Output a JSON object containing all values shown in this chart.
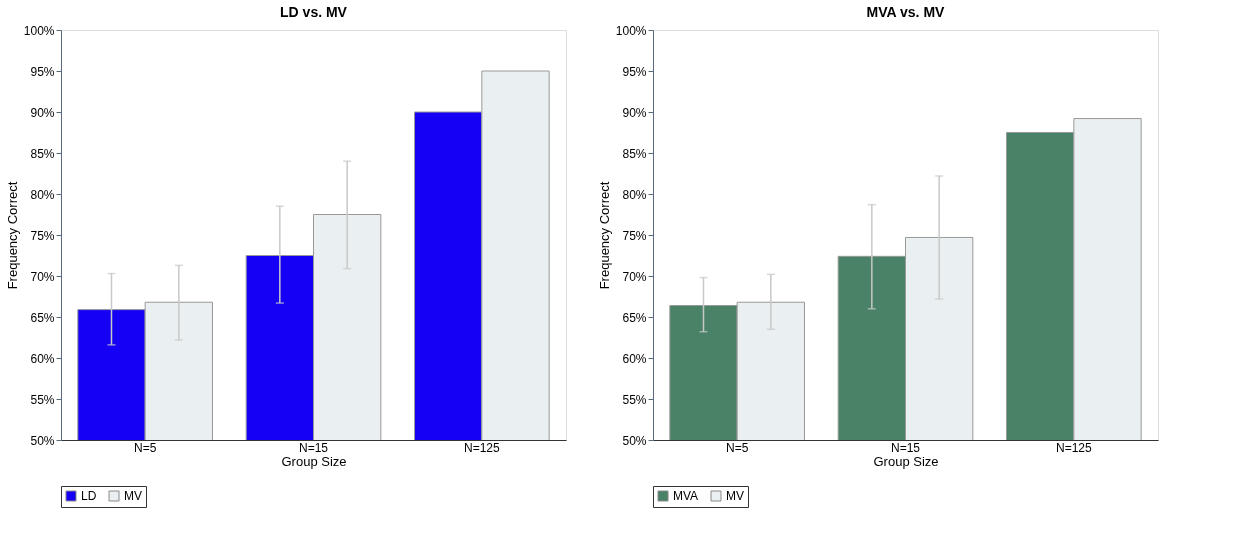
{
  "chart_data": [
    {
      "type": "bar",
      "title": "LD vs. MV",
      "xlabel": "Group Size",
      "ylabel": "Frequency Correct",
      "categories": [
        "N=5",
        "N=15",
        "N=125"
      ],
      "series": [
        {
          "name": "LD",
          "color": "#1500f5",
          "values": [
            65.9,
            72.5,
            90.0
          ],
          "errors": [
            [
              61.6,
              70.3
            ],
            [
              66.7,
              78.5
            ],
            null
          ]
        },
        {
          "name": "MV",
          "color": "#eaeff1",
          "values": [
            66.8,
            77.5,
            95.0
          ],
          "errors": [
            [
              62.2,
              71.3
            ],
            [
              70.9,
              84.0
            ],
            null
          ]
        }
      ],
      "ylim": [
        50,
        100
      ],
      "yticks": [
        {
          "value": 50,
          "label": "50%"
        },
        {
          "value": 55,
          "label": "55%"
        },
        {
          "value": 60,
          "label": "60%"
        },
        {
          "value": 65,
          "label": "65%"
        },
        {
          "value": 70,
          "label": "70%"
        },
        {
          "value": 75,
          "label": "75%"
        },
        {
          "value": 80,
          "label": "80%"
        },
        {
          "value": 85,
          "label": "85%"
        },
        {
          "value": 90,
          "label": "90%"
        },
        {
          "value": 95,
          "label": "95%"
        },
        {
          "value": 100,
          "label": "100%"
        }
      ],
      "grid": false,
      "legend": "bottom"
    },
    {
      "type": "bar",
      "title": "MVA vs. MV",
      "xlabel": "Group Size",
      "ylabel": "Frequency Correct",
      "categories": [
        "N=5",
        "N=15",
        "N=125"
      ],
      "series": [
        {
          "name": "MVA",
          "color": "#4a8267",
          "values": [
            66.4,
            72.4,
            87.5
          ],
          "errors": [
            [
              63.2,
              69.8
            ],
            [
              66.0,
              78.7
            ],
            null
          ]
        },
        {
          "name": "MV",
          "color": "#eaeff1",
          "values": [
            66.8,
            74.7,
            89.2
          ],
          "errors": [
            [
              63.5,
              70.2
            ],
            [
              67.2,
              82.2
            ],
            null
          ]
        }
      ],
      "ylim": [
        50,
        100
      ],
      "yticks": [
        {
          "value": 50,
          "label": "50%"
        },
        {
          "value": 55,
          "label": "55%"
        },
        {
          "value": 60,
          "label": "60%"
        },
        {
          "value": 65,
          "label": "65%"
        },
        {
          "value": 70,
          "label": "70%"
        },
        {
          "value": 75,
          "label": "75%"
        },
        {
          "value": 80,
          "label": "80%"
        },
        {
          "value": 85,
          "label": "85%"
        },
        {
          "value": 90,
          "label": "90%"
        },
        {
          "value": 95,
          "label": "95%"
        },
        {
          "value": 100,
          "label": "100%"
        }
      ],
      "grid": false,
      "legend": "bottom"
    }
  ]
}
